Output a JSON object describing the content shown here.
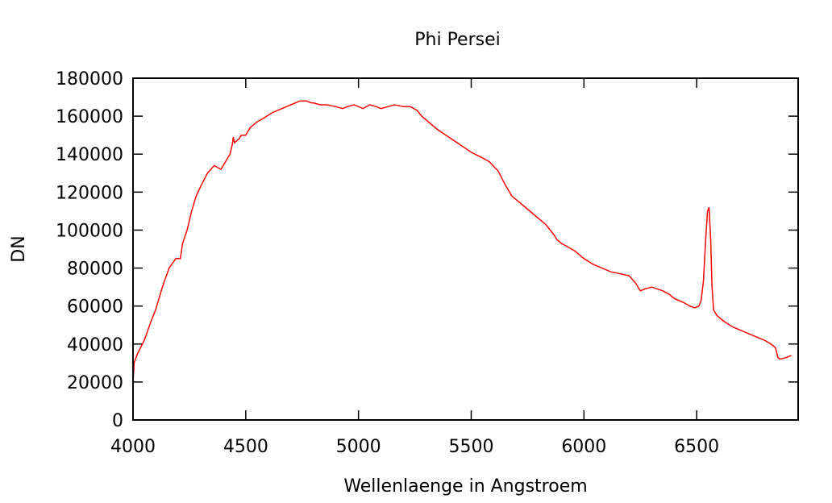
{
  "chart_data": {
    "type": "line",
    "title": "Phi Persei",
    "xlabel": "Wellenlaenge in Angstroem",
    "ylabel": "DN",
    "xlim": [
      4000,
      6950
    ],
    "ylim": [
      0,
      180000
    ],
    "xticks": [
      4000,
      4500,
      5000,
      5500,
      6000,
      6500
    ],
    "yticks": [
      0,
      20000,
      40000,
      60000,
      80000,
      100000,
      120000,
      140000,
      160000,
      180000
    ],
    "grid": false,
    "series": [
      {
        "name": "Phi Persei",
        "color": "#ff0000",
        "x": [
          4000,
          4005,
          4020,
          4050,
          4080,
          4100,
          4130,
          4160,
          4190,
          4210,
          4220,
          4240,
          4260,
          4280,
          4300,
          4330,
          4360,
          4390,
          4410,
          4430,
          4440,
          4445,
          4450,
          4470,
          4480,
          4500,
          4520,
          4550,
          4580,
          4620,
          4660,
          4700,
          4740,
          4770,
          4790,
          4800,
          4830,
          4860,
          4900,
          4930,
          4950,
          4980,
          5000,
          5020,
          5050,
          5080,
          5100,
          5130,
          5160,
          5200,
          5230,
          5260,
          5280,
          5310,
          5350,
          5400,
          5450,
          5500,
          5550,
          5580,
          5620,
          5650,
          5680,
          5700,
          5750,
          5800,
          5830,
          5850,
          5870,
          5880,
          5900,
          5930,
          5960,
          6000,
          6040,
          6080,
          6120,
          6160,
          6200,
          6230,
          6240,
          6250,
          6270,
          6300,
          6350,
          6380,
          6400,
          6440,
          6470,
          6490,
          6510,
          6520,
          6530,
          6540,
          6548,
          6555,
          6562,
          6568,
          6575,
          6590,
          6620,
          6660,
          6700,
          6760,
          6800,
          6830,
          6850,
          6860,
          6870,
          6900,
          6920
        ],
        "values": [
          20000,
          30000,
          35000,
          42000,
          52000,
          58000,
          70000,
          80000,
          85000,
          85000,
          93000,
          100000,
          110000,
          118000,
          123000,
          130000,
          134000,
          132000,
          136000,
          140000,
          145000,
          149000,
          146000,
          148000,
          150000,
          150000,
          154000,
          157000,
          159000,
          162000,
          164000,
          166000,
          168000,
          168000,
          167000,
          167000,
          166000,
          166000,
          165000,
          164000,
          165000,
          166000,
          165000,
          164000,
          166000,
          165000,
          164000,
          165000,
          166000,
          165000,
          165000,
          163000,
          160000,
          157000,
          153000,
          149000,
          145000,
          141000,
          138000,
          136000,
          131000,
          124000,
          118000,
          116000,
          111000,
          106000,
          103000,
          100000,
          97000,
          95000,
          93000,
          91000,
          89000,
          85000,
          82000,
          80000,
          78000,
          77000,
          76000,
          72000,
          70000,
          68000,
          69000,
          70000,
          68000,
          66000,
          64000,
          62000,
          60000,
          59000,
          60000,
          63000,
          73000,
          95000,
          110000,
          112000,
          95000,
          70000,
          58000,
          55000,
          52000,
          49000,
          47000,
          44000,
          42000,
          40000,
          38000,
          33000,
          32000,
          33000,
          34000
        ]
      }
    ]
  }
}
